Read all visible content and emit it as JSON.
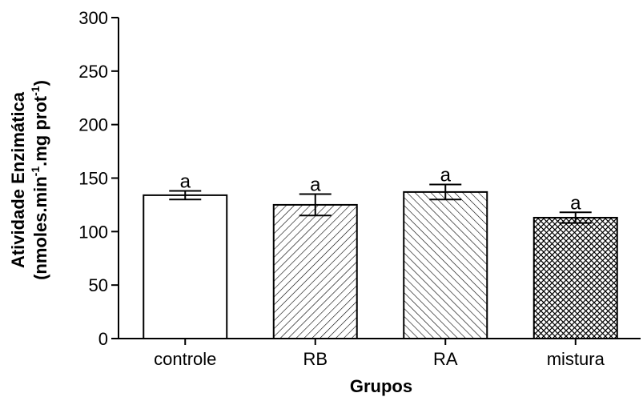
{
  "chart_data": {
    "type": "bar",
    "categories": [
      "controle",
      "RB",
      "RA",
      "mistura"
    ],
    "values": [
      134,
      125,
      137,
      113
    ],
    "errors": [
      4,
      10,
      7,
      5
    ],
    "significance_labels": [
      "a",
      "a",
      "a",
      "a"
    ],
    "bar_fills": [
      "solid-white",
      "hatch-diagonal-up",
      "hatch-diagonal-down",
      "crosshatch"
    ],
    "xlabel": "Grupos",
    "ylabel": {
      "line1": "Atividade Enzimática",
      "line2_a": "(nmoles.min",
      "line2_sup1": "-1",
      "line2_b": ".mg prot",
      "line2_sup2": "-1",
      "line2_c": ")"
    },
    "ylim": [
      0,
      300
    ],
    "yticks": [
      0,
      50,
      100,
      150,
      200,
      250,
      300
    ],
    "grid": false,
    "legend": "none"
  }
}
